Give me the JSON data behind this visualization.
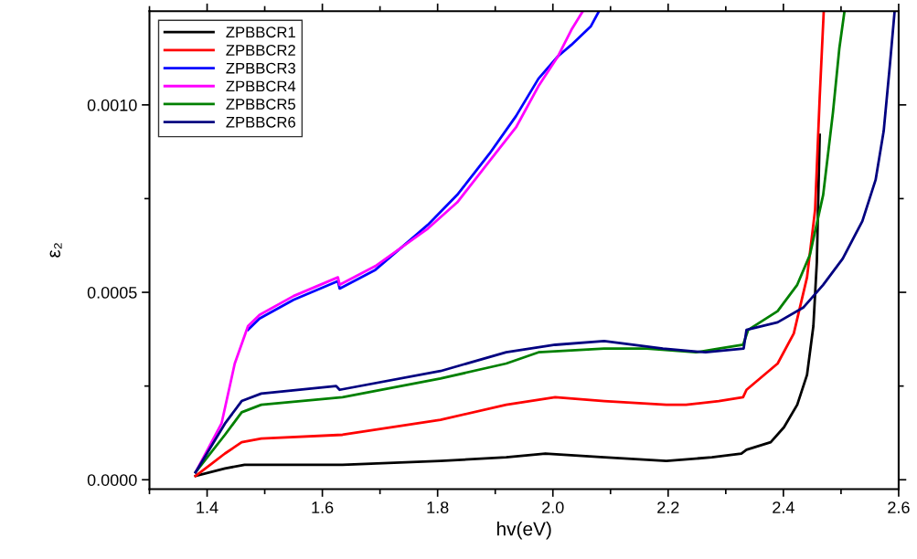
{
  "chart_data": {
    "type": "line",
    "xlabel": "hv(eV)",
    "ylabel": "ε₂",
    "xlim": [
      1.3,
      2.6
    ],
    "ylim": [
      -2.5e-05,
      0.00125
    ],
    "xticks": [
      {
        "value": 1.3,
        "label": null
      },
      1.4,
      {
        "value": 1.5,
        "label": null
      },
      1.6,
      {
        "value": 1.7,
        "label": null
      },
      1.8,
      {
        "value": 1.9,
        "label": null
      },
      {
        "value": 2.0,
        "label": "2.0"
      },
      {
        "value": 2.1,
        "label": null
      },
      2.2,
      {
        "value": 2.3,
        "label": null
      },
      2.4,
      {
        "value": 2.5,
        "label": null
      },
      2.6
    ],
    "yticks": [
      {
        "value": 0,
        "label": "0.0000"
      },
      {
        "value": 0.00025,
        "label": null
      },
      {
        "value": 0.0005,
        "label": "0.0005"
      },
      {
        "value": 0.00075,
        "label": null
      },
      {
        "value": 0.001,
        "label": "0.0010"
      }
    ],
    "grid": false,
    "legend": "top left",
    "line_style": "solid",
    "marker": "none",
    "series": [
      {
        "name": "ZPBBCR1",
        "color": "#000000",
        "x": [
          1.38,
          1.431,
          1.465,
          1.635,
          1.805,
          1.919,
          1.987,
          2.089,
          2.197,
          2.276,
          2.327,
          2.336,
          2.378,
          2.401,
          2.424,
          2.441,
          2.452,
          2.458,
          2.463
        ],
        "values": [
          1e-05,
          3e-05,
          4e-05,
          4e-05,
          5e-05,
          6e-05,
          7e-05,
          6e-05,
          5e-05,
          6e-05,
          7e-05,
          8e-05,
          0.0001,
          0.00014,
          0.0002,
          0.00028,
          0.00041,
          0.00058,
          0.00092
        ]
      },
      {
        "name": "ZPBBCR2",
        "color": "#ff0000",
        "x": [
          1.38,
          1.431,
          1.46,
          1.494,
          1.635,
          1.805,
          1.919,
          2.004,
          2.089,
          2.197,
          2.231,
          2.288,
          2.33,
          2.336,
          2.39,
          2.418,
          2.441,
          2.455,
          2.463,
          2.47
        ],
        "values": [
          1e-05,
          7e-05,
          0.0001,
          0.00011,
          0.00012,
          0.00016,
          0.0002,
          0.00022,
          0.00021,
          0.0002,
          0.0002,
          0.00021,
          0.00022,
          0.00024,
          0.00031,
          0.00039,
          0.00054,
          0.00072,
          0.00102,
          0.00125
        ]
      },
      {
        "name": "ZPBBCR3",
        "color": "#0000ff",
        "x": [
          1.471,
          1.491,
          1.55,
          1.627,
          1.63,
          1.692,
          1.783,
          1.834,
          1.89,
          1.936,
          1.975,
          2.009,
          2.032,
          2.066,
          2.08
        ],
        "values": [
          0.0004,
          0.00043,
          0.00048,
          0.00053,
          0.00051,
          0.00056,
          0.00068,
          0.00076,
          0.00087,
          0.00097,
          0.00107,
          0.00113,
          0.00116,
          0.00121,
          0.00125
        ]
      },
      {
        "name": "ZPBBCR4",
        "color": "#ff00ff",
        "x": [
          1.38,
          1.425,
          1.448,
          1.471,
          1.491,
          1.55,
          1.627,
          1.63,
          1.692,
          1.783,
          1.834,
          1.89,
          1.936,
          1.975,
          2.009,
          2.032,
          2.052
        ],
        "values": [
          2e-05,
          0.00015,
          0.00031,
          0.00041,
          0.00044,
          0.00049,
          0.00054,
          0.00052,
          0.00057,
          0.00067,
          0.00074,
          0.00085,
          0.00094,
          0.00105,
          0.00113,
          0.0012,
          0.00125
        ]
      },
      {
        "name": "ZPBBCR5",
        "color": "#008000",
        "x": [
          1.38,
          1.431,
          1.46,
          1.494,
          1.635,
          1.805,
          1.919,
          1.975,
          2.089,
          2.163,
          2.248,
          2.288,
          2.33,
          2.339,
          2.39,
          2.424,
          2.446,
          2.469,
          2.486,
          2.497,
          2.506
        ],
        "values": [
          2e-05,
          0.00012,
          0.00018,
          0.0002,
          0.00022,
          0.00027,
          0.00031,
          0.00034,
          0.00035,
          0.00035,
          0.00034,
          0.00035,
          0.00036,
          0.0004,
          0.00045,
          0.00052,
          0.0006,
          0.00076,
          0.00098,
          0.00115,
          0.00125
        ]
      },
      {
        "name": "ZPBBCR6",
        "color": "#000080",
        "x": [
          1.38,
          1.431,
          1.46,
          1.494,
          1.624,
          1.63,
          1.805,
          1.919,
          2.004,
          2.089,
          2.191,
          2.265,
          2.331,
          2.336,
          2.39,
          2.435,
          2.469,
          2.503,
          2.537,
          2.56,
          2.574,
          2.585,
          2.593
        ],
        "values": [
          2e-05,
          0.00015,
          0.00021,
          0.00023,
          0.00025,
          0.00024,
          0.00029,
          0.00034,
          0.00036,
          0.00037,
          0.00035,
          0.00034,
          0.00035,
          0.0004,
          0.00042,
          0.00046,
          0.00052,
          0.00059,
          0.00069,
          0.0008,
          0.00093,
          0.00111,
          0.00125
        ]
      }
    ]
  }
}
